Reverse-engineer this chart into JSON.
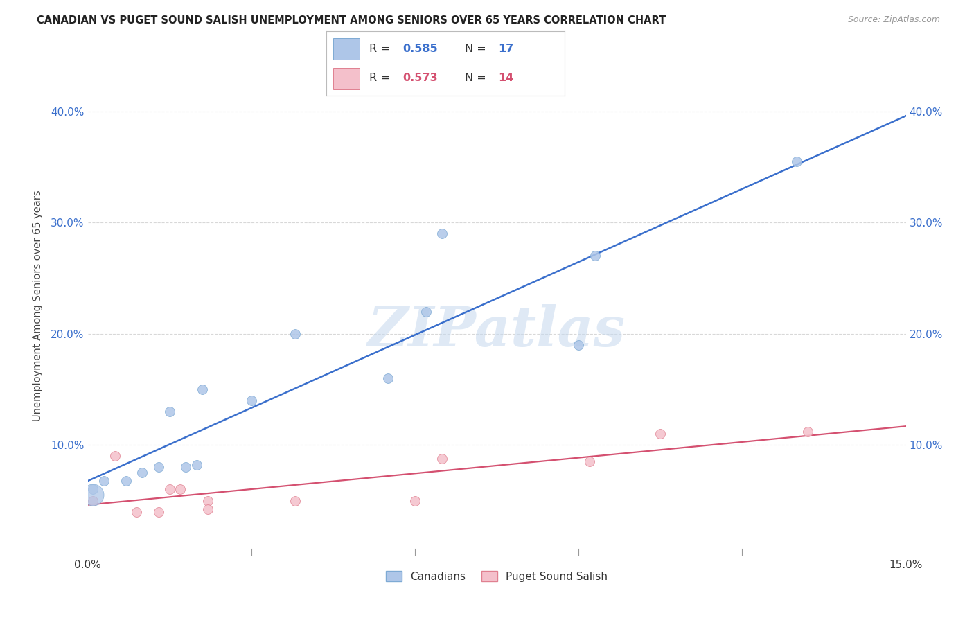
{
  "title": "CANADIAN VS PUGET SOUND SALISH UNEMPLOYMENT AMONG SENIORS OVER 65 YEARS CORRELATION CHART",
  "source": "Source: ZipAtlas.com",
  "ylabel": "Unemployment Among Seniors over 65 years",
  "xlim": [
    0.0,
    0.15
  ],
  "ylim": [
    -0.01,
    0.45
  ],
  "plot_ylim": [
    0.0,
    0.45
  ],
  "xticks": [
    0.0,
    0.03,
    0.06,
    0.09,
    0.12,
    0.15
  ],
  "yticks": [
    0.1,
    0.2,
    0.3,
    0.4
  ],
  "grid_color": "#d8d8d8",
  "background_color": "#ffffff",
  "watermark": "ZIPatlas",
  "canadians_x": [
    0.001,
    0.003,
    0.007,
    0.01,
    0.013,
    0.015,
    0.018,
    0.02,
    0.021,
    0.03,
    0.038,
    0.055,
    0.062,
    0.065,
    0.09,
    0.093,
    0.13
  ],
  "canadians_y": [
    0.06,
    0.068,
    0.068,
    0.075,
    0.08,
    0.13,
    0.08,
    0.082,
    0.15,
    0.14,
    0.2,
    0.16,
    0.22,
    0.29,
    0.19,
    0.27,
    0.355
  ],
  "canadians_color": "#aec6e8",
  "canadians_edge": "#7eaad4",
  "canadians_R": 0.585,
  "canadians_N": 17,
  "canadians_line_color": "#3a6fcc",
  "salish_x": [
    0.001,
    0.005,
    0.009,
    0.013,
    0.015,
    0.017,
    0.022,
    0.022,
    0.038,
    0.06,
    0.065,
    0.092,
    0.105,
    0.132
  ],
  "salish_y": [
    0.05,
    0.09,
    0.04,
    0.04,
    0.06,
    0.06,
    0.05,
    0.042,
    0.05,
    0.05,
    0.088,
    0.085,
    0.11,
    0.112
  ],
  "salish_color": "#f4c0cb",
  "salish_edge": "#e08090",
  "salish_R": 0.573,
  "salish_N": 14,
  "salish_line_color": "#d45070",
  "marker_size": 100,
  "canadians_label": "Canadians",
  "salish_label": "Puget Sound Salish",
  "tick_label_color_blue": "#3a6fcc",
  "tick_label_color_dark": "#333333"
}
